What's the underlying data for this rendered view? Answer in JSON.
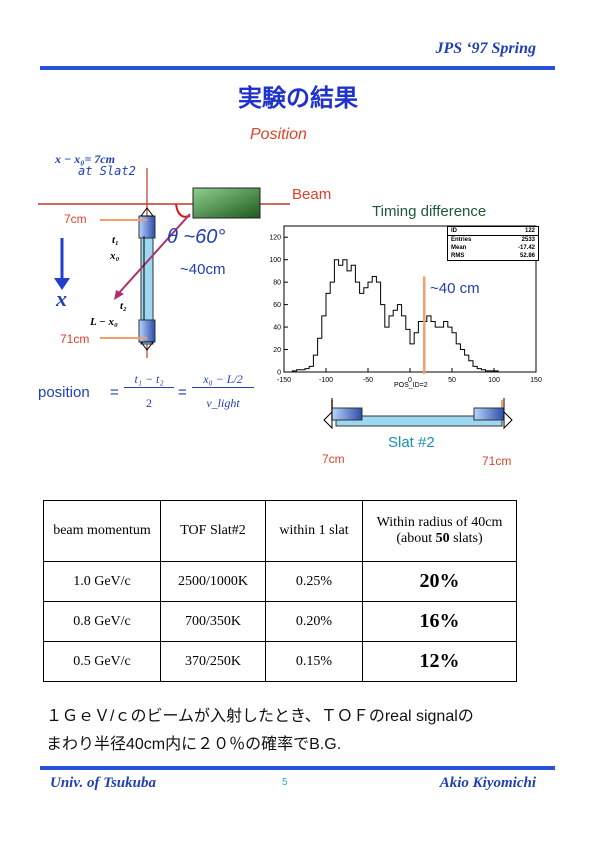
{
  "header": {
    "title": "JPS  ‘97  Spring"
  },
  "slide": {
    "title": "実験の結果"
  },
  "diagram": {
    "position_label": "Position",
    "x_minus_x0": "x − x₀= 7cm",
    "at_slat2": "at Slat2",
    "beam": "Beam",
    "cm7": "7cm",
    "cm71": "71cm",
    "theta": "θ ~60°",
    "t1": "t₁",
    "x0": "x₀",
    "t2": "t₂",
    "L_minus_x0": "L − x₀",
    "approx40": "~40cm",
    "x_axis": "x",
    "formula_position": "position",
    "formula_eq": "=",
    "formula_num1": "t₁ − t₂",
    "formula_den1": "2",
    "formula_num2": "x₀ − L/2",
    "formula_den2": "v_light"
  },
  "histogram": {
    "title": "Timing difference",
    "annotation": "~40 cm",
    "stats": [
      [
        "ID",
        "122"
      ],
      [
        "Entries",
        "2533"
      ],
      [
        "Mean",
        "-17.42"
      ],
      [
        "RMS",
        "52.86"
      ]
    ],
    "xlabel": "POS_ID=2",
    "slat_label": "Slat #2",
    "slat_left": "7cm",
    "slat_right": "71cm"
  },
  "chart_data": {
    "type": "bar",
    "title": "Timing difference",
    "xlabel": "POS_ID=2",
    "xlim": [
      -150,
      150
    ],
    "ylim": [
      0,
      130
    ],
    "x_ticks": [
      -150,
      -100,
      -50,
      0,
      50,
      100,
      150
    ],
    "y_ticks": [
      0,
      20,
      40,
      60,
      80,
      100,
      120
    ],
    "bin_width": 5,
    "bin_start": -140,
    "values": [
      1,
      2,
      2,
      3,
      5,
      15,
      30,
      50,
      70,
      80,
      100,
      95,
      100,
      90,
      95,
      80,
      70,
      75,
      80,
      85,
      80,
      60,
      40,
      50,
      55,
      60,
      50,
      38,
      25,
      35,
      45,
      45,
      50,
      45,
      40,
      40,
      45,
      40,
      35,
      25,
      20,
      15,
      10,
      5,
      3,
      2,
      1,
      1,
      1,
      0
    ]
  },
  "table": {
    "headers": [
      "beam momentum",
      "TOF Slat#2",
      "within 1 slat",
      "Within radius of 40cm"
    ],
    "header_sub_prefix": "(about ",
    "header_sub_bold": "50",
    "header_sub_suffix": " slats)",
    "rows": [
      [
        "1.0 GeV/c",
        "2500/1000K",
        "0.25%",
        "20%"
      ],
      [
        "0.8 GeV/c",
        "700/350K",
        "0.20%",
        "16%"
      ],
      [
        "0.5 GeV/c",
        "370/250K",
        "0.15%",
        "12%"
      ]
    ]
  },
  "text": {
    "line1": "１ＧｅＶ/ｃのビームが入射したとき、ＴＯＦのreal signalの",
    "line2": "まわり半径40cm内に２０％の確率でB.G."
  },
  "footer": {
    "left": "Univ. of Tsukuba",
    "page": "5",
    "right": "Akio Kiyomichi"
  }
}
